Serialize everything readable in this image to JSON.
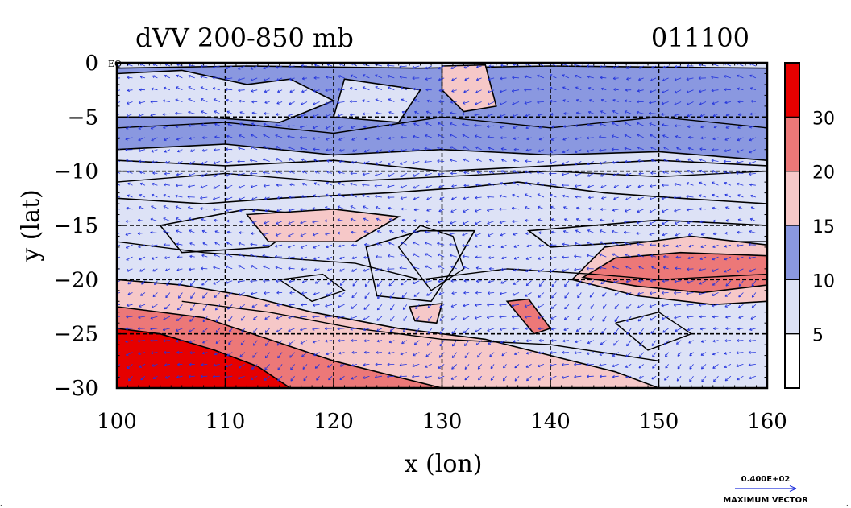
{
  "chart_data": {
    "type": "heatmap",
    "title": "dVV 200-850 mb",
    "date_label": "011100",
    "xlabel": "x (lon)",
    "ylabel": "y (lat)",
    "xlim": [
      100,
      160
    ],
    "ylim": [
      -30,
      0
    ],
    "x_ticks": [
      100,
      110,
      120,
      130,
      140,
      150,
      160
    ],
    "y_ticks": [
      0,
      -5,
      -10,
      -15,
      -20,
      -25,
      -30
    ],
    "y_tick_labels": [
      "0",
      "−5",
      "−10",
      "−15",
      "−20",
      "−25",
      "−30"
    ],
    "origin_label": "EQ",
    "grid": true,
    "colorbar": {
      "levels": [
        5,
        10,
        15,
        20,
        30
      ],
      "labels": [
        "5",
        "10",
        "15",
        "20",
        "30"
      ],
      "colors": [
        "#ffffff",
        "#dde2f6",
        "#8a98e0",
        "#f6c8c8",
        "#ec7878",
        "#e60000"
      ]
    },
    "vector_color": "#2233dd",
    "vector_legend": {
      "value": "0.400E+02",
      "label": "MAXIMUM VECTOR"
    },
    "regions": [
      {
        "level": 2,
        "points": [
          [
            100,
            -0.5
          ],
          [
            112,
            -0.3
          ],
          [
            128,
            -0.5
          ],
          [
            140,
            -0.3
          ],
          [
            160,
            -0.5
          ],
          [
            160,
            -9
          ],
          [
            150,
            -8.2
          ],
          [
            140,
            -8.5
          ],
          [
            130,
            -8
          ],
          [
            120,
            -8.5
          ],
          [
            110,
            -7.5
          ],
          [
            100,
            -8
          ]
        ]
      },
      {
        "level": 1,
        "points": [
          [
            100,
            -1
          ],
          [
            106,
            -0.7
          ],
          [
            112,
            -2
          ],
          [
            116,
            -1.5
          ],
          [
            120,
            -3.5
          ],
          [
            115,
            -5.5
          ],
          [
            108,
            -5
          ],
          [
            100,
            -5
          ]
        ]
      },
      {
        "level": 1,
        "points": [
          [
            121,
            -1.5
          ],
          [
            128,
            -2.5
          ],
          [
            126,
            -5.5
          ],
          [
            120,
            -5
          ]
        ]
      },
      {
        "level": 1,
        "points": [
          [
            100,
            -9
          ],
          [
            110,
            -9.5
          ],
          [
            120,
            -9
          ],
          [
            130,
            -10
          ],
          [
            140,
            -9.5
          ],
          [
            150,
            -9
          ],
          [
            160,
            -9.5
          ],
          [
            160,
            -13
          ],
          [
            152,
            -12.5
          ],
          [
            145,
            -12
          ],
          [
            137,
            -11
          ],
          [
            132,
            -11.5
          ],
          [
            125,
            -12
          ],
          [
            115,
            -12.5
          ],
          [
            108,
            -13
          ],
          [
            100,
            -12.5
          ]
        ]
      },
      {
        "level": 1,
        "points": [
          [
            104,
            -15
          ],
          [
            112,
            -13.5
          ],
          [
            118,
            -14
          ],
          [
            114,
            -17
          ],
          [
            106,
            -17.5
          ]
        ]
      },
      {
        "level": 1,
        "points": [
          [
            123,
            -17
          ],
          [
            128,
            -15.5
          ],
          [
            133,
            -15.5
          ],
          [
            131,
            -19
          ],
          [
            129,
            -22
          ],
          [
            124,
            -21.5
          ]
        ]
      },
      {
        "level": 1,
        "points": [
          [
            138,
            -15.5
          ],
          [
            150,
            -14.5
          ],
          [
            160,
            -15
          ],
          [
            160,
            -16.5
          ],
          [
            148,
            -16.5
          ],
          [
            140,
            -17
          ]
        ]
      },
      {
        "level": 3,
        "points": [
          [
            100,
            -20
          ],
          [
            106,
            -20.5
          ],
          [
            112,
            -21.5
          ],
          [
            118,
            -23
          ],
          [
            126,
            -24.5
          ],
          [
            134,
            -25.5
          ],
          [
            140,
            -27
          ],
          [
            146,
            -28.5
          ],
          [
            150,
            -30
          ],
          [
            100,
            -30
          ]
        ]
      },
      {
        "level": 3,
        "points": [
          [
            112,
            -14
          ],
          [
            120,
            -13.5
          ],
          [
            126,
            -14.2
          ],
          [
            122,
            -16.5
          ],
          [
            114,
            -16.5
          ]
        ]
      },
      {
        "level": 3,
        "points": [
          [
            145,
            -17
          ],
          [
            153,
            -16
          ],
          [
            160,
            -16.8
          ],
          [
            160,
            -22
          ],
          [
            155,
            -22.3
          ],
          [
            148,
            -21.5
          ],
          [
            142,
            -20
          ]
        ]
      },
      {
        "level": 3,
        "points": [
          [
            130,
            -0.3
          ],
          [
            134,
            -0.2
          ],
          [
            135,
            -4
          ],
          [
            132,
            -4.5
          ],
          [
            130,
            -2.5
          ]
        ]
      },
      {
        "level": 3,
        "points": [
          [
            127,
            -22.5
          ],
          [
            130,
            -22.2
          ],
          [
            129.5,
            -24
          ],
          [
            127.5,
            -23.8
          ]
        ]
      },
      {
        "level": 4,
        "points": [
          [
            100,
            -22.5
          ],
          [
            108,
            -23.5
          ],
          [
            114,
            -25.5
          ],
          [
            120,
            -27.5
          ],
          [
            128,
            -29.5
          ],
          [
            130,
            -30
          ],
          [
            100,
            -30
          ]
        ]
      },
      {
        "level": 4,
        "points": [
          [
            146,
            -18
          ],
          [
            152,
            -17.5
          ],
          [
            160,
            -17.8
          ],
          [
            160,
            -20.5
          ],
          [
            154,
            -21.2
          ],
          [
            148,
            -20.6
          ],
          [
            143,
            -19.8
          ]
        ]
      },
      {
        "level": 4,
        "points": [
          [
            136,
            -22
          ],
          [
            138,
            -21.8
          ],
          [
            140,
            -24.5
          ],
          [
            138.5,
            -25
          ]
        ]
      },
      {
        "level": 5,
        "points": [
          [
            100,
            -24.5
          ],
          [
            104,
            -25
          ],
          [
            109,
            -26.5
          ],
          [
            113,
            -28
          ],
          [
            116,
            -30
          ],
          [
            100,
            -30
          ]
        ]
      }
    ],
    "contours": [
      [
        [
          100,
          -11
        ],
        [
          110,
          -10.2
        ],
        [
          120,
          -11
        ],
        [
          130,
          -10.5
        ],
        [
          140,
          -10
        ],
        [
          150,
          -10.5
        ],
        [
          160,
          -10
        ]
      ],
      [
        [
          100,
          -16.5
        ],
        [
          108,
          -17.5
        ],
        [
          115,
          -18
        ],
        [
          122,
          -18.5
        ],
        [
          128,
          -20
        ],
        [
          136,
          -19
        ],
        [
          144,
          -19.5
        ],
        [
          150,
          -20
        ],
        [
          160,
          -19.5
        ]
      ],
      [
        [
          106,
          -22
        ],
        [
          114,
          -23
        ],
        [
          122,
          -24.5
        ],
        [
          130,
          -25.5
        ],
        [
          140,
          -26
        ],
        [
          150,
          -27.5
        ]
      ],
      [
        [
          128,
          -15
        ],
        [
          126,
          -17
        ],
        [
          129,
          -21
        ],
        [
          132,
          -19
        ],
        [
          131,
          -16
        ],
        [
          128,
          -15
        ]
      ],
      [
        [
          115,
          -20
        ],
        [
          119,
          -19.5
        ],
        [
          121,
          -21
        ],
        [
          118,
          -22
        ],
        [
          115,
          -20
        ]
      ],
      [
        [
          146,
          -24
        ],
        [
          150,
          -23
        ],
        [
          153,
          -25
        ],
        [
          149,
          -26.5
        ],
        [
          146,
          -24
        ]
      ],
      [
        [
          100,
          -6
        ],
        [
          110,
          -5.5
        ],
        [
          120,
          -6.5
        ],
        [
          130,
          -5
        ],
        [
          140,
          -6
        ],
        [
          150,
          -5
        ],
        [
          160,
          -6
        ]
      ]
    ]
  }
}
